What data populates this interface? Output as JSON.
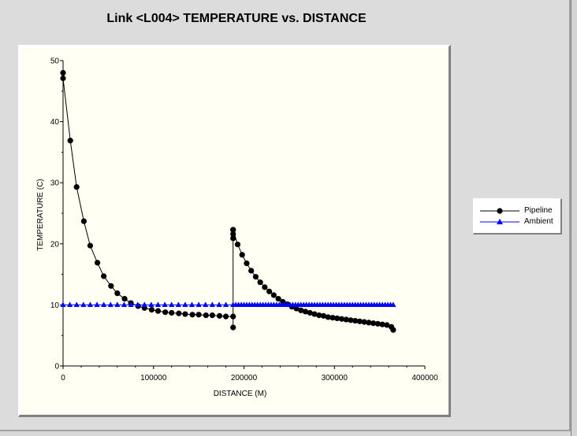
{
  "chart_data": {
    "type": "line",
    "title": "Link <L004> TEMPERATURE vs. DISTANCE",
    "xlabel": "DISTANCE (M)",
    "ylabel": "TEMPERATURE (C)",
    "xlim": [
      0,
      400000
    ],
    "ylim": [
      0,
      50
    ],
    "x_ticks": [
      0,
      100000,
      200000,
      300000,
      400000
    ],
    "x_tick_labels": [
      "0",
      "100000",
      "200000",
      "300000",
      "400000"
    ],
    "y_ticks": [
      0,
      10,
      20,
      30,
      40,
      50
    ],
    "y_tick_labels": [
      "0",
      "10",
      "20",
      "30",
      "40",
      "50"
    ],
    "legend_position": "right",
    "series": [
      {
        "name": "Pipeline",
        "color": "#000000",
        "marker": "circle",
        "x": [
          0,
          0,
          8000,
          15000,
          23000,
          30000,
          38000,
          45000,
          53000,
          60000,
          68000,
          75000,
          83000,
          90000,
          98000,
          105000,
          113000,
          120000,
          128000,
          135000,
          143000,
          150000,
          158000,
          165000,
          173000,
          180000,
          188000,
          188000,
          188000,
          188000,
          188000,
          188000,
          193000,
          198000,
          203000,
          208000,
          213000,
          218000,
          223000,
          228000,
          233000,
          238000,
          243000,
          248000,
          253000,
          258000,
          263000,
          268000,
          273000,
          278000,
          283000,
          288000,
          293000,
          298000,
          303000,
          308000,
          313000,
          318000,
          323000,
          328000,
          333000,
          338000,
          343000,
          348000,
          353000,
          358000,
          363000,
          365000
        ],
        "y": [
          48,
          47.1,
          36.9,
          29.3,
          23.7,
          19.7,
          16.9,
          14.7,
          13.1,
          11.9,
          11.0,
          10.3,
          9.8,
          9.5,
          9.2,
          9.0,
          8.8,
          8.7,
          8.6,
          8.5,
          8.4,
          8.4,
          8.3,
          8.3,
          8.2,
          8.1,
          8.1,
          6.3,
          20.9,
          21.6,
          22.3,
          22.3,
          19.9,
          18.2,
          16.8,
          15.6,
          14.6,
          13.7,
          12.9,
          12.2,
          11.6,
          11.0,
          10.5,
          10.1,
          9.7,
          9.4,
          9.1,
          8.9,
          8.7,
          8.5,
          8.3,
          8.2,
          8.0,
          7.9,
          7.8,
          7.7,
          7.6,
          7.5,
          7.4,
          7.3,
          7.2,
          7.1,
          7.0,
          6.9,
          6.8,
          6.7,
          6.4,
          5.9
        ]
      },
      {
        "name": "Ambient",
        "color": "#0000ff",
        "marker": "triangle",
        "x": [
          0,
          7500,
          15000,
          22500,
          30000,
          37500,
          45000,
          52500,
          60000,
          67500,
          75000,
          82500,
          90000,
          97500,
          105000,
          112500,
          120000,
          127500,
          135000,
          142500,
          150000,
          157500,
          165000,
          172500,
          180000,
          188000,
          191000,
          194000,
          197000,
          200000,
          203000,
          206000,
          209000,
          212000,
          215000,
          218000,
          221000,
          224000,
          227000,
          230000,
          233000,
          236000,
          239000,
          242000,
          245000,
          248000,
          251000,
          254000,
          257000,
          260000,
          263000,
          266000,
          269000,
          272000,
          275000,
          278000,
          281000,
          284000,
          287000,
          290000,
          293000,
          296000,
          299000,
          302000,
          305000,
          308000,
          311000,
          314000,
          317000,
          320000,
          323000,
          326000,
          329000,
          332000,
          335000,
          338000,
          341000,
          344000,
          347000,
          350000,
          353000,
          356000,
          359000,
          362000,
          365000
        ],
        "y": [
          10,
          10,
          10,
          10,
          10,
          10,
          10,
          10,
          10,
          10,
          10,
          10,
          10,
          10,
          10,
          10,
          10,
          10,
          10,
          10,
          10,
          10,
          10,
          10,
          10,
          10,
          10,
          10,
          10,
          10,
          10,
          10,
          10,
          10,
          10,
          10,
          10,
          10,
          10,
          10,
          10,
          10,
          10,
          10,
          10,
          10,
          10,
          10,
          10,
          10,
          10,
          10,
          10,
          10,
          10,
          10,
          10,
          10,
          10,
          10,
          10,
          10,
          10,
          10,
          10,
          10,
          10,
          10,
          10,
          10,
          10,
          10,
          10,
          10,
          10,
          10,
          10,
          10,
          10,
          10,
          10,
          10,
          10,
          10,
          10
        ]
      }
    ]
  }
}
